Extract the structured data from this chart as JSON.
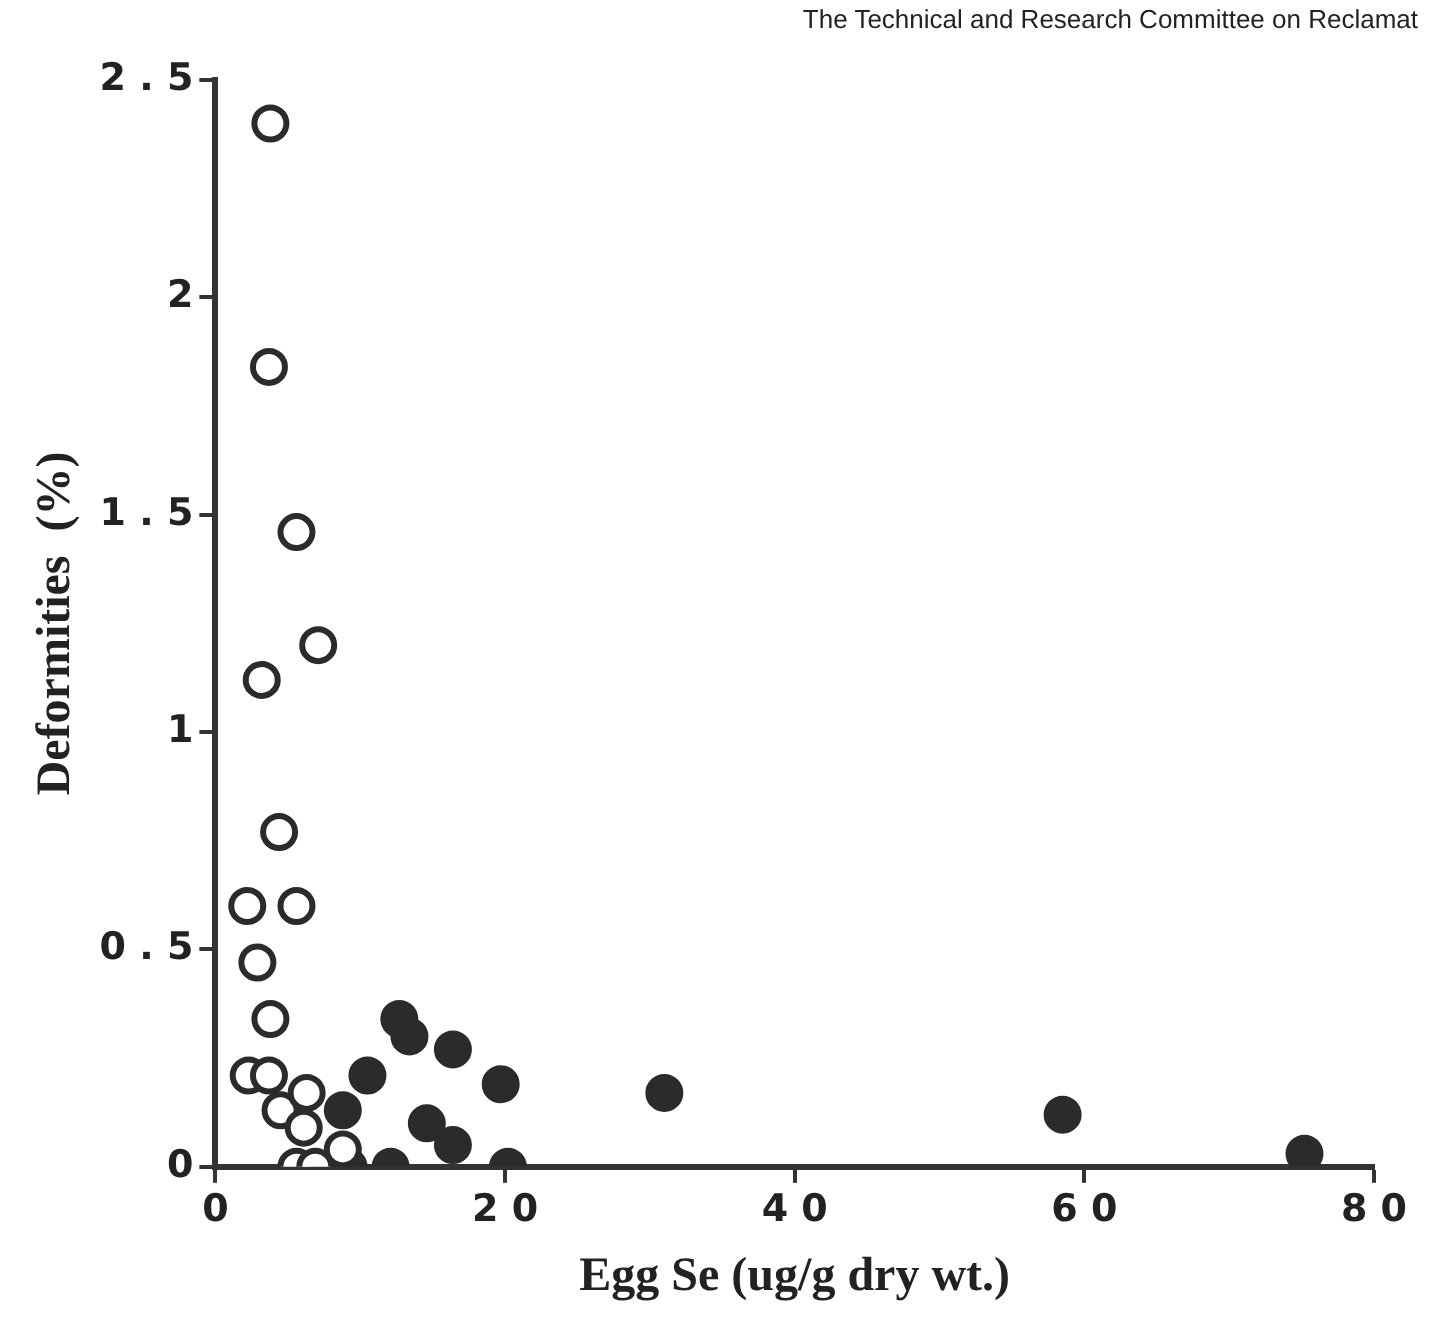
{
  "chart_data": {
    "type": "scatter",
    "xlabel": "Egg Se (ug/g dry wt.)",
    "ylabel": "Deformities  (%)",
    "annotations": [
      "The Technical and Research Committee on Reclamat"
    ],
    "xlim": [
      0,
      80
    ],
    "ylim": [
      0,
      2.5
    ],
    "xticks": [
      0,
      20,
      40,
      60,
      80
    ],
    "yticks": [
      0,
      0.5,
      1,
      1.5,
      2,
      2.5
    ],
    "grid": false,
    "legend": false,
    "marker": "circle",
    "series": [
      {
        "color": "#2b2b2b",
        "x": [
          3.8,
          3.7,
          5.6,
          7.1,
          3.2,
          4.4,
          2.2,
          5.6,
          2.9,
          3.8,
          2.3,
          3.7,
          4.5,
          6.3,
          6.1,
          5.6,
          6.9,
          8.8
        ],
        "values": [
          2.4,
          1.84,
          1.46,
          1.2,
          1.12,
          0.77,
          0.6,
          0.6,
          0.47,
          0.34,
          0.21,
          0.21,
          0.13,
          0.17,
          0.09,
          0,
          0,
          0.04
        ]
      },
      {
        "color": "#2b2b2b",
        "x": [
          12.7,
          13.4,
          16.4,
          10.5,
          19.7,
          8.8,
          14.6,
          16.4,
          9.2,
          12.1,
          20.2,
          31,
          58.5,
          75.2
        ],
        "values": [
          0.34,
          0.3,
          0.27,
          0.21,
          0.19,
          0.13,
          0.1,
          0.05,
          0,
          0,
          0,
          0.17,
          0.12,
          0.03
        ]
      }
    ]
  }
}
